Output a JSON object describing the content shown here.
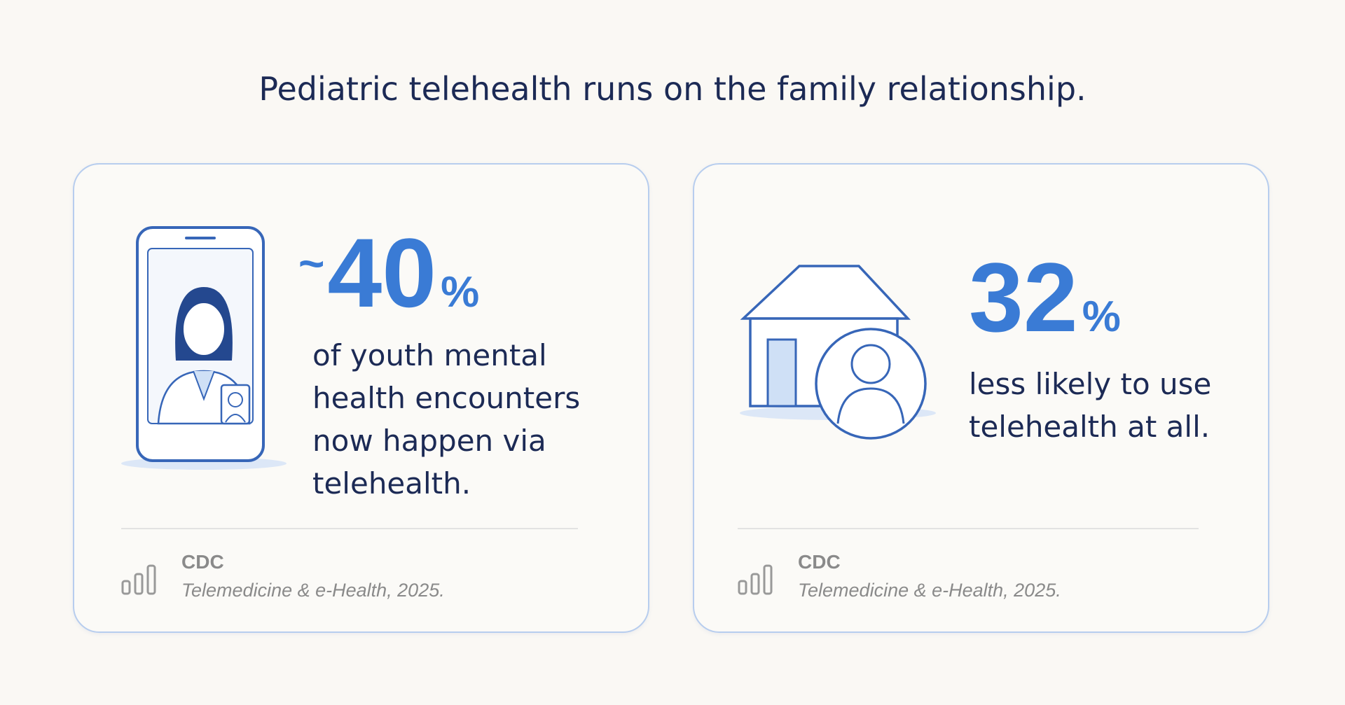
{
  "header": {
    "title": "Pediatric telehealth runs on the family relationship."
  },
  "cards": [
    {
      "stat_prefix": "~",
      "stat_value": "40",
      "stat_unit": "%",
      "description": "of youth mental health encounters now happen via telehealth.",
      "source": {
        "name": "CDC",
        "citation": "Telemedicine & e-Health, 2025."
      }
    },
    {
      "stat_value": "32",
      "stat_unit": "%",
      "description": "less likely to use telehealth at all.",
      "source": {
        "name": "CDC",
        "citation": "Telemedicine & e-Health, 2025."
      }
    }
  ]
}
